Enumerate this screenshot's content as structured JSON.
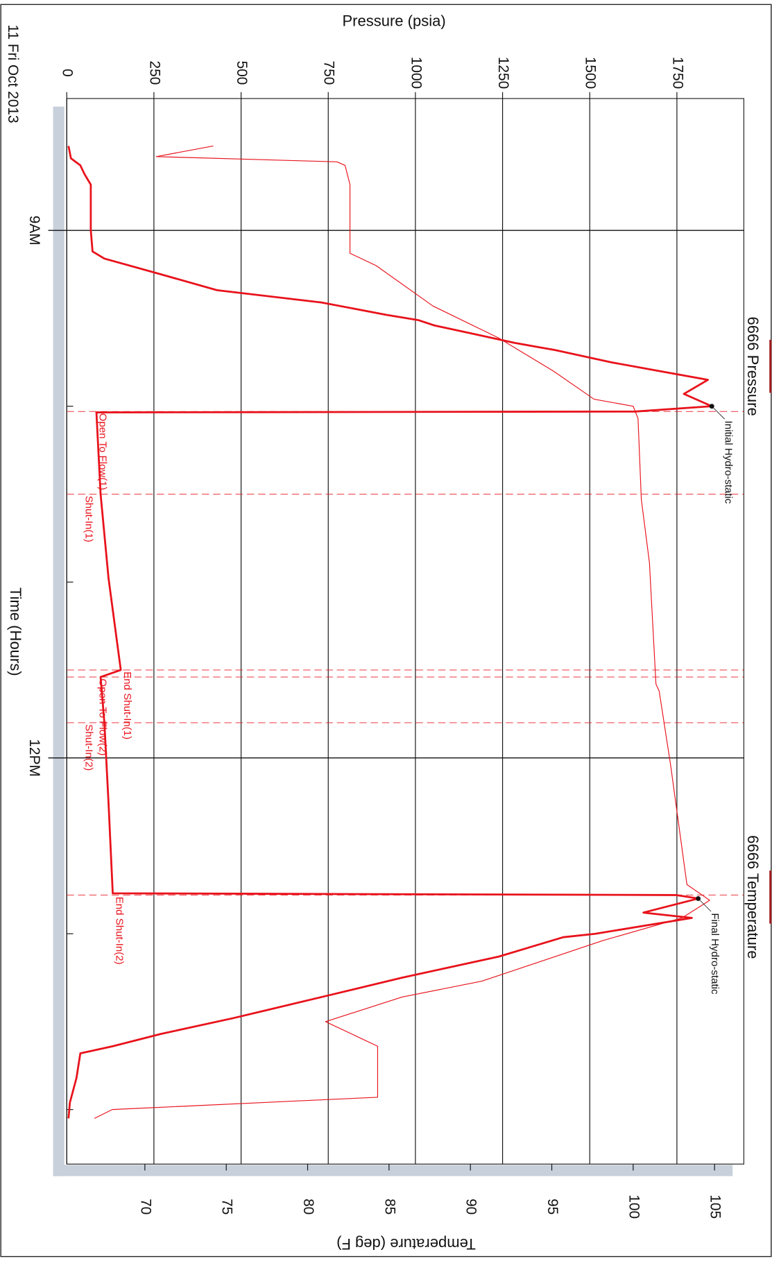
{
  "chart_data": {
    "type": "line",
    "date_label": "11 Fri Oct 2013",
    "xlabel": "Time (Hours)",
    "ylabel": "Pressure (psia)",
    "y2label": "Temperature (deg F)",
    "xlim": [
      8.25,
      14.31
    ],
    "xticks": [
      {
        "value": 9,
        "label": "9AM"
      },
      {
        "value": 12,
        "label": "12PM"
      }
    ],
    "xminorticks": [
      10,
      11,
      13,
      14
    ],
    "ylim": [
      0,
      1942
    ],
    "yticks": [
      0,
      250,
      500,
      750,
      1000,
      1250,
      1500,
      1750
    ],
    "y2lim": [
      65.2,
      106.8
    ],
    "y2ticks": [
      70,
      75,
      80,
      85,
      90,
      95,
      100,
      105
    ],
    "grid": true,
    "series": [
      {
        "name": "6666 Pressure",
        "color": "#e8121b",
        "x": [
          8.52,
          8.59,
          8.63,
          8.68,
          8.74,
          9.0,
          9.12,
          9.16,
          9.25,
          9.34,
          9.41,
          9.48,
          9.51,
          9.54,
          9.59,
          9.64,
          9.68,
          9.75,
          9.8,
          9.85,
          9.93,
          10.0,
          10.03,
          10.035,
          10.5,
          10.98,
          11.5,
          11.54,
          11.8,
          12.26,
          12.77,
          12.78,
          12.8,
          12.88,
          12.91,
          13.0,
          13.02,
          13.13,
          13.25,
          13.36,
          13.48,
          13.57,
          13.64,
          13.68,
          13.82,
          13.96,
          14.05
        ],
        "values": [
          5,
          12,
          39,
          51,
          69,
          69,
          74,
          108,
          270,
          431,
          731,
          916,
          1008,
          1054,
          1170,
          1285,
          1400,
          1562,
          1700,
          1839,
          1770,
          1850,
          1631,
          85,
          97,
          120,
          155,
          97,
          108,
          120,
          132,
          1747,
          1811,
          1654,
          1793,
          1516,
          1424,
          1239,
          962,
          731,
          478,
          270,
          132,
          39,
          28,
          9,
          5
        ]
      },
      {
        "name": "6666 Temperature",
        "color": "#e8121b",
        "axis": "y2",
        "x": [
          8.52,
          8.58,
          8.61,
          8.63,
          8.74,
          9.13,
          9.2,
          9.43,
          9.61,
          9.8,
          9.96,
          10.0,
          10.07,
          10.53,
          10.89,
          11.58,
          11.62,
          12.04,
          12.72,
          12.81,
          12.91,
          13.04,
          13.27,
          13.36,
          13.5,
          13.64,
          13.93,
          14.0,
          14.05
        ],
        "values": [
          74.2,
          70.7,
          81.8,
          82.3,
          82.6,
          82.6,
          84.2,
          87.7,
          91.7,
          95.1,
          97.6,
          100.0,
          100.3,
          100.5,
          101.0,
          101.4,
          101.6,
          102.3,
          103.3,
          104.7,
          103.0,
          98.1,
          90.7,
          85.8,
          81.1,
          84.3,
          84.3,
          68.0,
          66.9
        ]
      }
    ],
    "events": [
      {
        "x": 10.03,
        "label": "Open To Flow(1)"
      },
      {
        "x": 10.5,
        "label": "Shut-In(1)"
      },
      {
        "x": 11.5,
        "label": "End Shut-In(1)"
      },
      {
        "x": 11.54,
        "label": "Open To Flow(2)"
      },
      {
        "x": 11.8,
        "label": "Shut-In(2)"
      },
      {
        "x": 12.78,
        "label": "End Shut-In(2)"
      }
    ],
    "annotations": [
      {
        "x": 10.0,
        "y": 1850,
        "label": "Initial Hydro-static"
      },
      {
        "x": 12.8,
        "y": 1811,
        "label": "Final Hydro-static"
      }
    ]
  }
}
